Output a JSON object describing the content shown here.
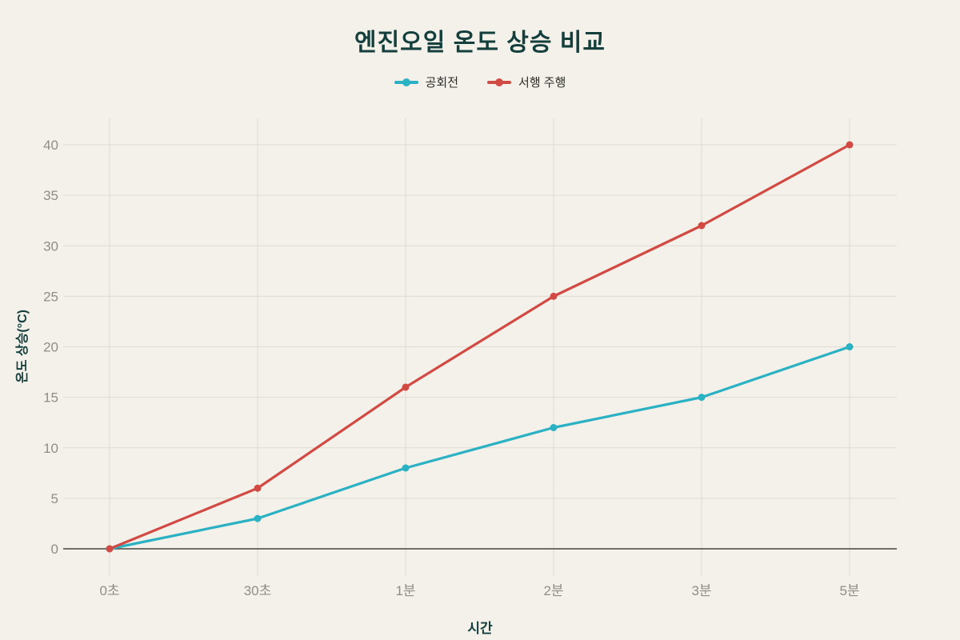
{
  "chart_data": {
    "type": "line",
    "title": "엔진오일 온도 상승 비교",
    "xlabel": "시간",
    "ylabel": "온도 상승(°C)",
    "categories": [
      "0초",
      "30초",
      "1분",
      "2분",
      "3분",
      "5분"
    ],
    "series": [
      {
        "name": "공회전",
        "color": "#2bb1c4",
        "values": [
          0,
          3,
          8,
          12,
          15,
          20
        ]
      },
      {
        "name": "서행 주행",
        "color": "#d24a44",
        "values": [
          0,
          6,
          16,
          25,
          32,
          40
        ]
      }
    ],
    "ylim": [
      0,
      40
    ],
    "yticks": [
      0,
      5,
      10,
      15,
      20,
      25,
      30,
      35,
      40
    ],
    "grid": true,
    "legend_position": "top"
  },
  "colors": {
    "background": "#f3f1e9",
    "title": "#143f3d",
    "axis_title": "#143f3d",
    "tick_label": "#8f8e86",
    "grid": "#dfdcd3",
    "zero_line": "#45453e",
    "legend_text": "#2d2d2b"
  }
}
